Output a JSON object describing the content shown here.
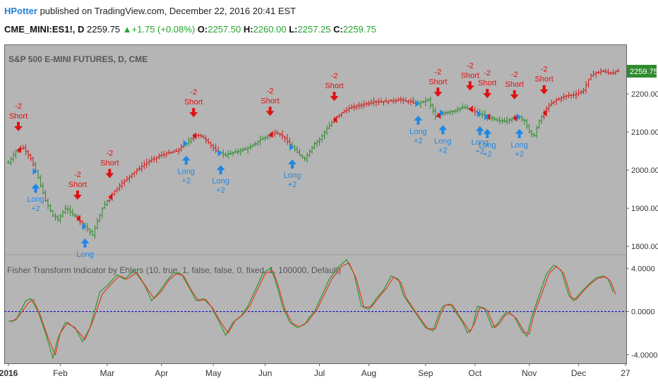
{
  "header": {
    "author": "HPotter",
    "published": "published on TradingView.com, December 22, 2016 20:41 EST",
    "symbol": "CME_MINI:ES1!, D",
    "last": "2259.75",
    "change": "+1.75 (+0.08%)",
    "o_label": "O:",
    "o": "2257.50",
    "h_label": "H:",
    "h": "2260.00",
    "l_label": "L:",
    "l": "2257.25",
    "c_label": "C:",
    "c": "2259.75"
  },
  "colors": {
    "background": "#b5b5b5",
    "up": "#2e8b2e",
    "down": "#d11a1a",
    "long": "#1e88e5",
    "short": "#e01010",
    "fisher": "#2a9a2a",
    "trigger": "#e03a2a",
    "zero": "#1010cc",
    "price_tag": "#2e8b2e"
  },
  "chart_data": [
    {
      "type": "candlestick",
      "title": "S&P 500 E-MINI FUTURES, D, CME",
      "ylim": [
        1780,
        2330
      ],
      "y_ticks": [
        "2200.00",
        "2100.00",
        "2000.00",
        "1900.00",
        "1800.00"
      ],
      "y_tick_values": [
        2200,
        2100,
        2000,
        1900,
        1800
      ],
      "last_price": "2259.75",
      "x_ticks": [
        "2016",
        "Feb",
        "Mar",
        "Apr",
        "May",
        "Jun",
        "Jul",
        "Aug",
        "Sep",
        "Oct",
        "Nov",
        "Dec",
        "27"
      ],
      "x_tick_bars": [
        0,
        21,
        40,
        62,
        83,
        104,
        126,
        146,
        169,
        189,
        211,
        231,
        250
      ],
      "n_bars": 248,
      "close_path": [
        [
          0,
          2020
        ],
        [
          3,
          2050
        ],
        [
          6,
          2060
        ],
        [
          9,
          2030
        ],
        [
          12,
          1980
        ],
        [
          15,
          1920
        ],
        [
          18,
          1880
        ],
        [
          20,
          1870
        ],
        [
          23,
          1900
        ],
        [
          27,
          1880
        ],
        [
          30,
          1860
        ],
        [
          34,
          1830
        ],
        [
          38,
          1900
        ],
        [
          41,
          1930
        ],
        [
          45,
          1960
        ],
        [
          50,
          1990
        ],
        [
          56,
          2020
        ],
        [
          62,
          2040
        ],
        [
          68,
          2050
        ],
        [
          72,
          2070
        ],
        [
          75,
          2090
        ],
        [
          78,
          2090
        ],
        [
          80,
          2080
        ],
        [
          84,
          2050
        ],
        [
          88,
          2040
        ],
        [
          93,
          2050
        ],
        [
          98,
          2060
        ],
        [
          102,
          2080
        ],
        [
          105,
          2090
        ],
        [
          108,
          2100
        ],
        [
          111,
          2090
        ],
        [
          115,
          2060
        ],
        [
          118,
          2040
        ],
        [
          120,
          2030
        ],
        [
          122,
          2050
        ],
        [
          124,
          2070
        ],
        [
          126,
          2080
        ],
        [
          129,
          2110
        ],
        [
          133,
          2140
        ],
        [
          137,
          2160
        ],
        [
          142,
          2170
        ],
        [
          148,
          2180
        ],
        [
          153,
          2180
        ],
        [
          158,
          2185
        ],
        [
          162,
          2180
        ],
        [
          166,
          2175
        ],
        [
          168,
          2180
        ],
        [
          170,
          2185
        ],
        [
          173,
          2140
        ],
        [
          176,
          2150
        ],
        [
          180,
          2155
        ],
        [
          184,
          2165
        ],
        [
          187,
          2160
        ],
        [
          190,
          2150
        ],
        [
          194,
          2140
        ],
        [
          198,
          2130
        ],
        [
          201,
          2130
        ],
        [
          204,
          2135
        ],
        [
          207,
          2140
        ],
        [
          209,
          2130
        ],
        [
          211,
          2100
        ],
        [
          213,
          2090
        ],
        [
          215,
          2130
        ],
        [
          217,
          2150
        ],
        [
          219,
          2170
        ],
        [
          222,
          2185
        ],
        [
          226,
          2195
        ],
        [
          230,
          2200
        ],
        [
          233,
          2210
        ],
        [
          236,
          2250
        ],
        [
          240,
          2260
        ],
        [
          244,
          2255
        ],
        [
          247,
          2260
        ]
      ],
      "shorts": [
        [
          4,
          "-2",
          "Short"
        ],
        [
          28,
          "-2",
          "Short"
        ],
        [
          41,
          "-2",
          "Short"
        ],
        [
          75,
          "-2",
          "Short"
        ],
        [
          106,
          "-2",
          "Short"
        ],
        [
          132,
          "-2",
          "Short"
        ],
        [
          174,
          "-2",
          "Short"
        ],
        [
          187,
          "-2",
          "Short"
        ],
        [
          194,
          "-2",
          "Short"
        ],
        [
          205,
          "-2",
          "Short"
        ],
        [
          217,
          "-2",
          "Short"
        ]
      ],
      "longs": [
        [
          11,
          "Long",
          "+2"
        ],
        [
          31,
          "Long",
          ""
        ],
        [
          72,
          "Long",
          "+2"
        ],
        [
          86,
          "Long",
          "+2"
        ],
        [
          115,
          "Long",
          "+2"
        ],
        [
          166,
          "Long",
          "+2"
        ],
        [
          176,
          "Long",
          "+2"
        ],
        [
          191,
          "Long",
          "+2"
        ],
        [
          194,
          "Long",
          "+2"
        ],
        [
          207,
          "Long",
          "+2"
        ]
      ]
    },
    {
      "type": "line",
      "title": "Fisher Transform Indicator by Ehlers (10, true, 1, false, false, 0, fixed, 1, 100000, Default)",
      "ylim": [
        -4.8,
        5.2
      ],
      "y_ticks": [
        "4.0000",
        "0.0000",
        "-4.0000"
      ],
      "y_tick_values": [
        4,
        0,
        -4
      ],
      "zero_line": 0,
      "series": [
        {
          "name": "",
          "points": [
            [
              0,
              -0.9
            ],
            [
              3,
              -0.8
            ],
            [
              7,
              1.0
            ],
            [
              9,
              1.2
            ],
            [
              12,
              0
            ],
            [
              15,
              -2.0
            ],
            [
              18,
              -4.3
            ],
            [
              20,
              -2.5
            ],
            [
              23,
              -1.0
            ],
            [
              27,
              -1.5
            ],
            [
              30,
              -2.8
            ],
            [
              33,
              -1.5
            ],
            [
              37,
              1.8
            ],
            [
              40,
              2.4
            ],
            [
              44,
              3.4
            ],
            [
              47,
              3.0
            ],
            [
              51,
              3.8
            ],
            [
              55,
              2.5
            ],
            [
              58,
              1.0
            ],
            [
              61,
              1.8
            ],
            [
              64,
              2.8
            ],
            [
              67,
              3.6
            ],
            [
              70,
              3.5
            ],
            [
              73,
              2.3
            ],
            [
              76,
              1.0
            ],
            [
              79,
              1.2
            ],
            [
              82,
              0.5
            ],
            [
              85,
              -0.8
            ],
            [
              88,
              -2.2
            ],
            [
              91,
              -1.0
            ],
            [
              94,
              -0.5
            ],
            [
              97,
              0.5
            ],
            [
              100,
              2.0
            ],
            [
              103,
              3.5
            ],
            [
              106,
              4.0
            ],
            [
              108,
              3.0
            ],
            [
              111,
              0.5
            ],
            [
              114,
              -1.0
            ],
            [
              117,
              -1.5
            ],
            [
              120,
              -1.2
            ],
            [
              122,
              -0.5
            ],
            [
              124,
              0
            ],
            [
              127,
              1.5
            ],
            [
              130,
              3.0
            ],
            [
              134,
              4.2
            ],
            [
              137,
              4.8
            ],
            [
              140,
              3.5
            ],
            [
              143,
              0.5
            ],
            [
              146,
              0.2
            ],
            [
              149,
              1.2
            ],
            [
              152,
              2.0
            ],
            [
              155,
              3.3
            ],
            [
              158,
              3.0
            ],
            [
              160,
              1.5
            ],
            [
              163,
              0.5
            ],
            [
              166,
              -0.5
            ],
            [
              169,
              -1.5
            ],
            [
              172,
              -1.8
            ],
            [
              174,
              -0.5
            ],
            [
              176,
              0.5
            ],
            [
              179,
              0.7
            ],
            [
              181,
              0
            ],
            [
              184,
              -1.0
            ],
            [
              186,
              -2.0
            ],
            [
              188,
              -1.5
            ],
            [
              190,
              0.5
            ],
            [
              193,
              0.3
            ],
            [
              196,
              -1.5
            ],
            [
              198,
              -1.2
            ],
            [
              200,
              -0.5
            ],
            [
              202,
              0
            ],
            [
              205,
              -0.5
            ],
            [
              208,
              -1.8
            ],
            [
              210,
              -2.3
            ],
            [
              212,
              -0.5
            ],
            [
              215,
              1.5
            ],
            [
              218,
              3.5
            ],
            [
              221,
              4.3
            ],
            [
              224,
              3.8
            ],
            [
              227,
              1.5
            ],
            [
              229,
              1.0
            ],
            [
              232,
              1.8
            ],
            [
              235,
              2.5
            ],
            [
              238,
              3.1
            ],
            [
              241,
              3.3
            ],
            [
              243,
              3.0
            ],
            [
              245,
              1.8
            ]
          ]
        },
        {
          "name": "",
          "points": [
            [
              1,
              -1.0
            ],
            [
              4,
              -0.5
            ],
            [
              8,
              0.8
            ],
            [
              10,
              1.1
            ],
            [
              13,
              -0.4
            ],
            [
              16,
              -2.4
            ],
            [
              19,
              -4.0
            ],
            [
              21,
              -2.0
            ],
            [
              24,
              -1.0
            ],
            [
              28,
              -1.8
            ],
            [
              31,
              -2.6
            ],
            [
              34,
              -1.0
            ],
            [
              38,
              1.6
            ],
            [
              41,
              2.4
            ],
            [
              45,
              3.3
            ],
            [
              48,
              3.0
            ],
            [
              52,
              3.6
            ],
            [
              56,
              2.2
            ],
            [
              59,
              1.2
            ],
            [
              62,
              1.9
            ],
            [
              65,
              2.9
            ],
            [
              68,
              3.5
            ],
            [
              71,
              3.3
            ],
            [
              74,
              2.0
            ],
            [
              77,
              1.0
            ],
            [
              80,
              1.1
            ],
            [
              83,
              0.2
            ],
            [
              86,
              -1.0
            ],
            [
              89,
              -2.0
            ],
            [
              92,
              -0.8
            ],
            [
              95,
              -0.3
            ],
            [
              98,
              0.6
            ],
            [
              101,
              2.1
            ],
            [
              104,
              3.5
            ],
            [
              107,
              3.8
            ],
            [
              109,
              2.6
            ],
            [
              112,
              0.2
            ],
            [
              115,
              -1.1
            ],
            [
              118,
              -1.4
            ],
            [
              121,
              -1.0
            ],
            [
              123,
              -0.4
            ],
            [
              125,
              0.2
            ],
            [
              128,
              1.6
            ],
            [
              131,
              3.0
            ],
            [
              135,
              4.2
            ],
            [
              138,
              4.5
            ],
            [
              141,
              3.0
            ],
            [
              144,
              0.4
            ],
            [
              147,
              0.4
            ],
            [
              150,
              1.3
            ],
            [
              153,
              2.1
            ],
            [
              156,
              3.2
            ],
            [
              159,
              2.7
            ],
            [
              161,
              1.3
            ],
            [
              164,
              0.3
            ],
            [
              167,
              -0.7
            ],
            [
              170,
              -1.6
            ],
            [
              173,
              -1.6
            ],
            [
              175,
              -0.3
            ],
            [
              177,
              0.6
            ],
            [
              180,
              0.6
            ],
            [
              182,
              -0.2
            ],
            [
              185,
              -1.2
            ],
            [
              187,
              -1.9
            ],
            [
              189,
              -1.0
            ],
            [
              191,
              0.4
            ],
            [
              194,
              0.1
            ],
            [
              197,
              -1.5
            ],
            [
              199,
              -1.1
            ],
            [
              201,
              -0.4
            ],
            [
              203,
              -0.1
            ],
            [
              206,
              -0.7
            ],
            [
              209,
              -1.9
            ],
            [
              211,
              -2.1
            ],
            [
              213,
              -0.2
            ],
            [
              216,
              1.6
            ],
            [
              219,
              3.5
            ],
            [
              222,
              4.2
            ],
            [
              225,
              3.5
            ],
            [
              228,
              1.3
            ],
            [
              230,
              1.1
            ],
            [
              233,
              1.9
            ],
            [
              236,
              2.6
            ],
            [
              239,
              3.1
            ],
            [
              242,
              3.2
            ],
            [
              244,
              2.8
            ],
            [
              246,
              1.6
            ]
          ]
        }
      ]
    }
  ]
}
